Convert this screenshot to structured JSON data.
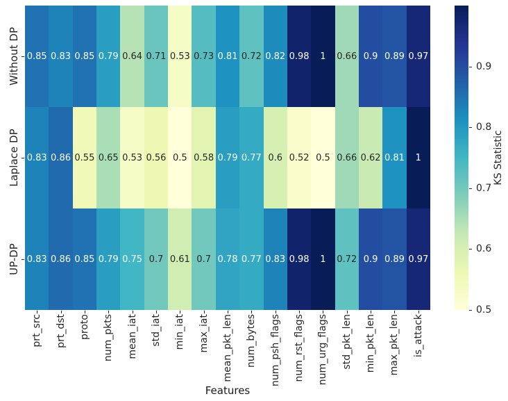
{
  "figure": {
    "background": "#ffffff",
    "text_color": "#262626"
  },
  "chart_data": {
    "type": "heatmap",
    "title": "",
    "xlabel": "Features",
    "ylabel": "",
    "colorbar_label": "KS Statistic",
    "rows": [
      "Without DP",
      "Laplace DP",
      "UP-DP"
    ],
    "columns": [
      "prt_src",
      "prt_dst",
      "proto",
      "num_pkts",
      "mean_iat",
      "std_iat",
      "min_iat",
      "max_iat",
      "mean_pkt_len",
      "num_bytes",
      "num_psh_flags",
      "num_rst_flags",
      "num_urg_flags",
      "std_pkt_len",
      "min_pkt_len",
      "max_pkt_len",
      "is_attack"
    ],
    "values": [
      [
        0.85,
        0.83,
        0.85,
        0.79,
        0.64,
        0.71,
        0.53,
        0.73,
        0.81,
        0.72,
        0.82,
        0.98,
        1,
        0.66,
        0.9,
        0.89,
        0.97
      ],
      [
        0.83,
        0.86,
        0.55,
        0.65,
        0.53,
        0.56,
        0.5,
        0.58,
        0.79,
        0.77,
        0.6,
        0.52,
        0.5,
        0.66,
        0.62,
        0.81,
        1
      ],
      [
        0.83,
        0.86,
        0.85,
        0.79,
        0.75,
        0.7,
        0.61,
        0.7,
        0.78,
        0.77,
        0.83,
        0.98,
        1,
        0.72,
        0.9,
        0.89,
        0.97
      ]
    ],
    "vmin": 0.5,
    "vmax": 1.0,
    "colorbar_ticks": [
      0.9,
      0.8,
      0.7,
      0.6,
      0.5
    ],
    "legend_position": "right",
    "grid": false,
    "colormap": {
      "name": "YlGnBu",
      "stops": [
        "#ffffd9",
        "#edf8b1",
        "#c7e9b4",
        "#7fcdbb",
        "#41b6c4",
        "#1d91c0",
        "#225ea8",
        "#253494",
        "#081d58"
      ]
    },
    "annotation_text_colors": {
      "light": "#ffffff",
      "dark": "#262626"
    }
  }
}
